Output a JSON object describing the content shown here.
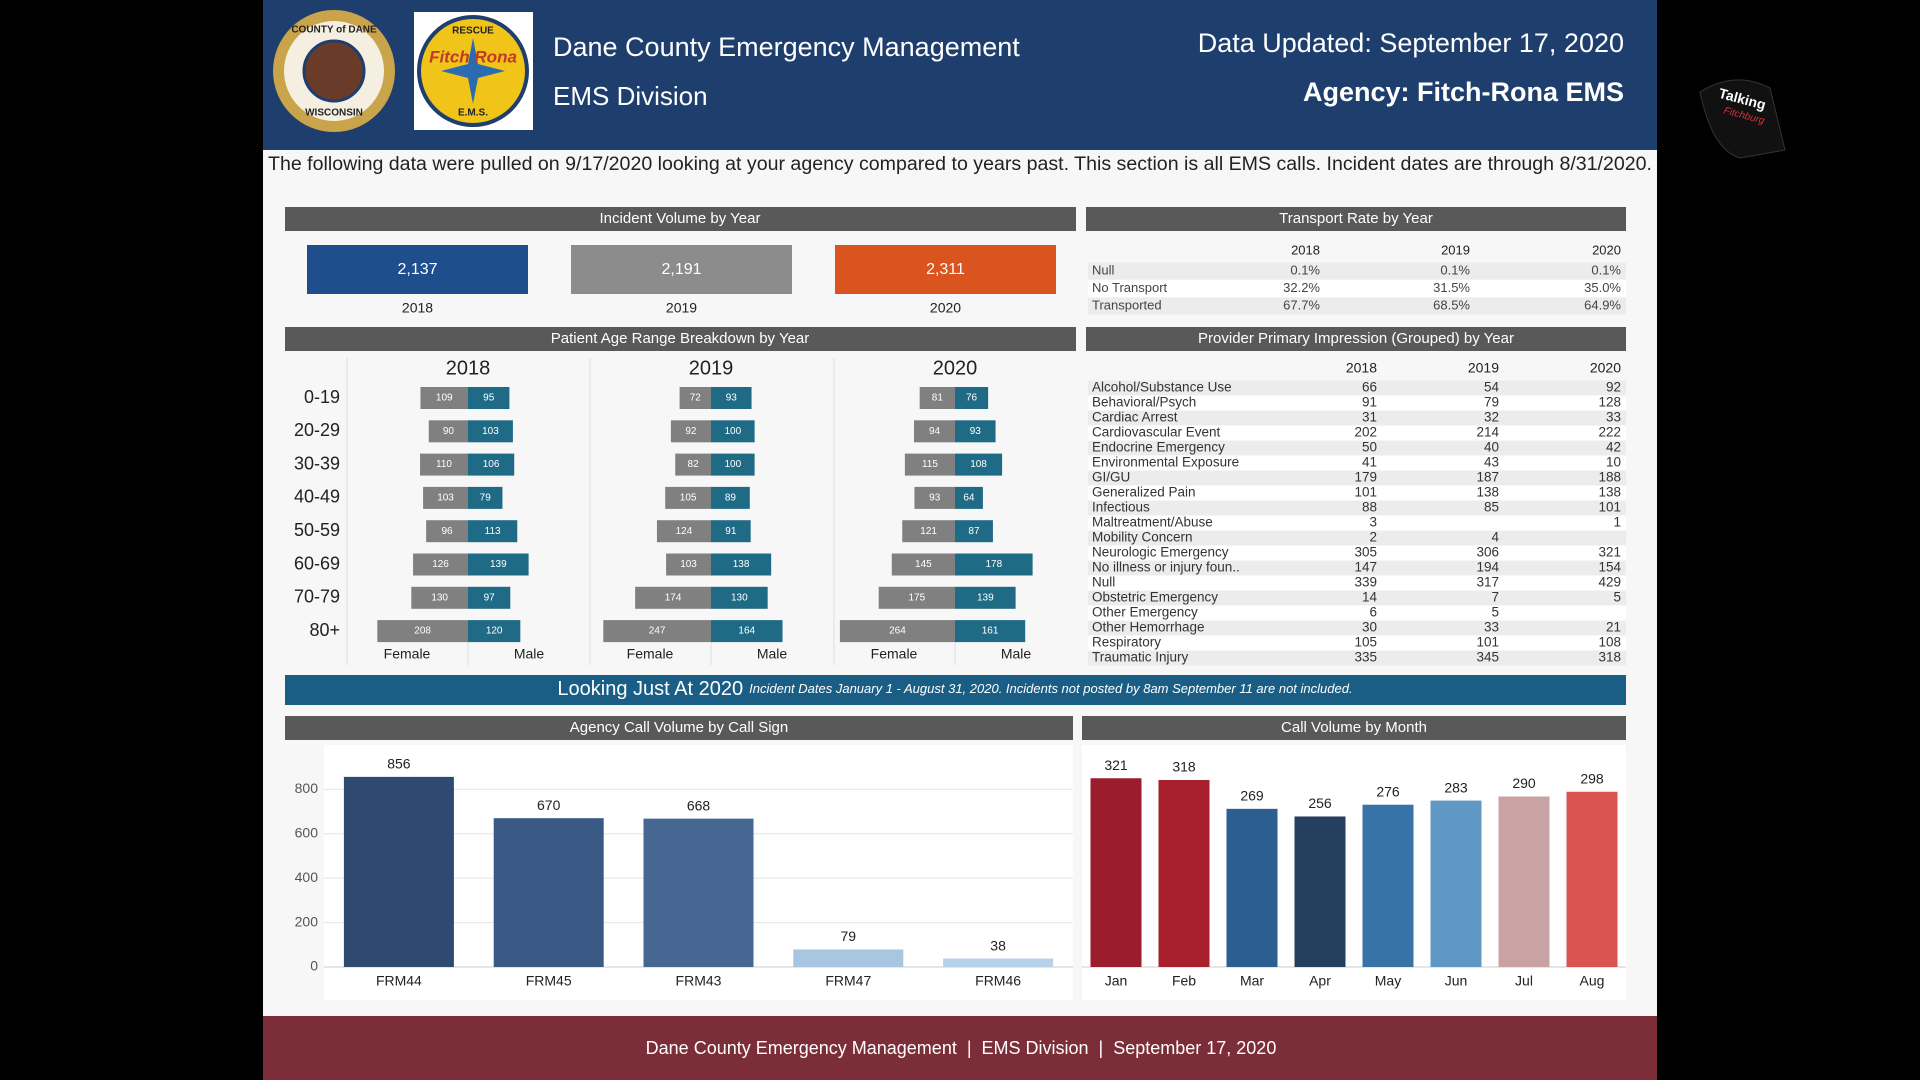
{
  "header": {
    "title": "Dane County Emergency Management",
    "subtitle": "EMS Division",
    "updated": "Data Updated: September 17, 2020",
    "agency": "Agency: Fitch-Rona EMS"
  },
  "logos": {
    "county_top": "COUNTY of DANE",
    "county_bottom": "WISCONSIN",
    "rescue_top": "RESCUE",
    "rescue_name": "Fitch Rona",
    "rescue_bottom": "E.M.S."
  },
  "watermark": [
    "Talking",
    "Fitchburg"
  ],
  "intro": "The following data were pulled on 9/17/2020 looking at your agency compared to years past. This section is all EMS calls. Incident dates are through 8/31/2020.",
  "incident_volume": {
    "title": "Incident Volume by Year",
    "years": [
      "2018",
      "2019",
      "2020"
    ],
    "values": [
      "2,137",
      "2,191",
      "2,311"
    ],
    "colors": [
      "#1f4e8c",
      "#8c8c8c",
      "#d9541e"
    ]
  },
  "transport_rate": {
    "title": "Transport Rate by Year",
    "columns": [
      "2018",
      "2019",
      "2020"
    ],
    "rows": [
      [
        "Null",
        "0.1%",
        "0.1%",
        "0.1%"
      ],
      [
        "No Transport",
        "32.2%",
        "31.5%",
        "35.0%"
      ],
      [
        "Transported",
        "67.7%",
        "68.5%",
        "64.9%"
      ]
    ]
  },
  "age_breakdown": {
    "title": "Patient Age Range Breakdown by Year",
    "age_groups": [
      "0-19",
      "20-29",
      "30-39",
      "40-49",
      "50-59",
      "60-69",
      "70-79",
      "80+"
    ],
    "sex_labels": [
      "Female",
      "Male"
    ],
    "colors": [
      "#808080",
      "#1f6b86"
    ],
    "years": [
      {
        "year": "2018",
        "female": [
          109,
          90,
          110,
          103,
          96,
          126,
          130,
          208
        ],
        "male": [
          95,
          103,
          106,
          79,
          113,
          139,
          97,
          120
        ]
      },
      {
        "year": "2019",
        "female": [
          72,
          92,
          82,
          105,
          124,
          103,
          174,
          247
        ],
        "male": [
          93,
          100,
          100,
          89,
          91,
          138,
          130,
          164
        ]
      },
      {
        "year": "2020",
        "female": [
          81,
          94,
          115,
          93,
          121,
          145,
          175,
          264
        ],
        "male": [
          76,
          93,
          108,
          64,
          87,
          178,
          139,
          161
        ]
      }
    ]
  },
  "impression": {
    "title": "Provider Primary Impression (Grouped) by Year",
    "columns": [
      "2018",
      "2019",
      "2020"
    ],
    "rows": [
      [
        "Alcohol/Substance Use",
        66,
        54,
        92
      ],
      [
        "Behavioral/Psych",
        91,
        79,
        128
      ],
      [
        "Cardiac Arrest",
        31,
        32,
        33
      ],
      [
        "Cardiovascular Event",
        202,
        214,
        222
      ],
      [
        "Endocrine Emergency",
        50,
        40,
        42
      ],
      [
        "Environmental Exposure",
        41,
        43,
        10
      ],
      [
        "GI/GU",
        179,
        187,
        188
      ],
      [
        "Generalized Pain",
        101,
        138,
        138
      ],
      [
        "Infectious",
        88,
        85,
        101
      ],
      [
        "Maltreatment/Abuse",
        3,
        null,
        1
      ],
      [
        "Mobility Concern",
        2,
        4,
        null
      ],
      [
        "Neurologic Emergency",
        305,
        306,
        321
      ],
      [
        "No illness or injury foun..",
        147,
        194,
        154
      ],
      [
        "Null",
        339,
        317,
        429
      ],
      [
        "Obstetric Emergency",
        14,
        7,
        5
      ],
      [
        "Other Emergency",
        6,
        5,
        null
      ],
      [
        "Other Hemorrhage",
        30,
        33,
        21
      ],
      [
        "Respiratory",
        105,
        101,
        108
      ],
      [
        "Traumatic Injury",
        335,
        345,
        318
      ]
    ]
  },
  "banner": {
    "title": "Looking Just At 2020",
    "note": "Incident Dates January 1 - August 31, 2020. Incidents not posted by 8am September 11 are not included."
  },
  "chart_data": [
    {
      "type": "bar",
      "title": "Agency Call Volume by Call Sign",
      "categories": [
        "FRM44",
        "FRM45",
        "FRM43",
        "FRM47",
        "FRM46"
      ],
      "values": [
        856,
        670,
        668,
        79,
        38
      ],
      "colors": [
        "#2e4a70",
        "#3a5a85",
        "#456792",
        "#a9c6e0",
        "#b7d1e8"
      ],
      "ylim": [
        0,
        950
      ],
      "yticks": [
        0,
        200,
        400,
        600,
        800
      ],
      "grid": true
    },
    {
      "type": "bar",
      "title": "Call Volume by Month",
      "categories": [
        "Jan",
        "Feb",
        "Mar",
        "Apr",
        "May",
        "Jun",
        "Jul",
        "Aug"
      ],
      "values": [
        321,
        318,
        269,
        256,
        276,
        283,
        290,
        298
      ],
      "colors": [
        "#9b1c2c",
        "#a81f2e",
        "#2b5e91",
        "#253f5f",
        "#3873a8",
        "#5f98c4",
        "#c9a3a3",
        "#d9534f"
      ]
    }
  ],
  "footer": "Dane County Emergency Management  |  EMS Division  |  September 17, 2020"
}
